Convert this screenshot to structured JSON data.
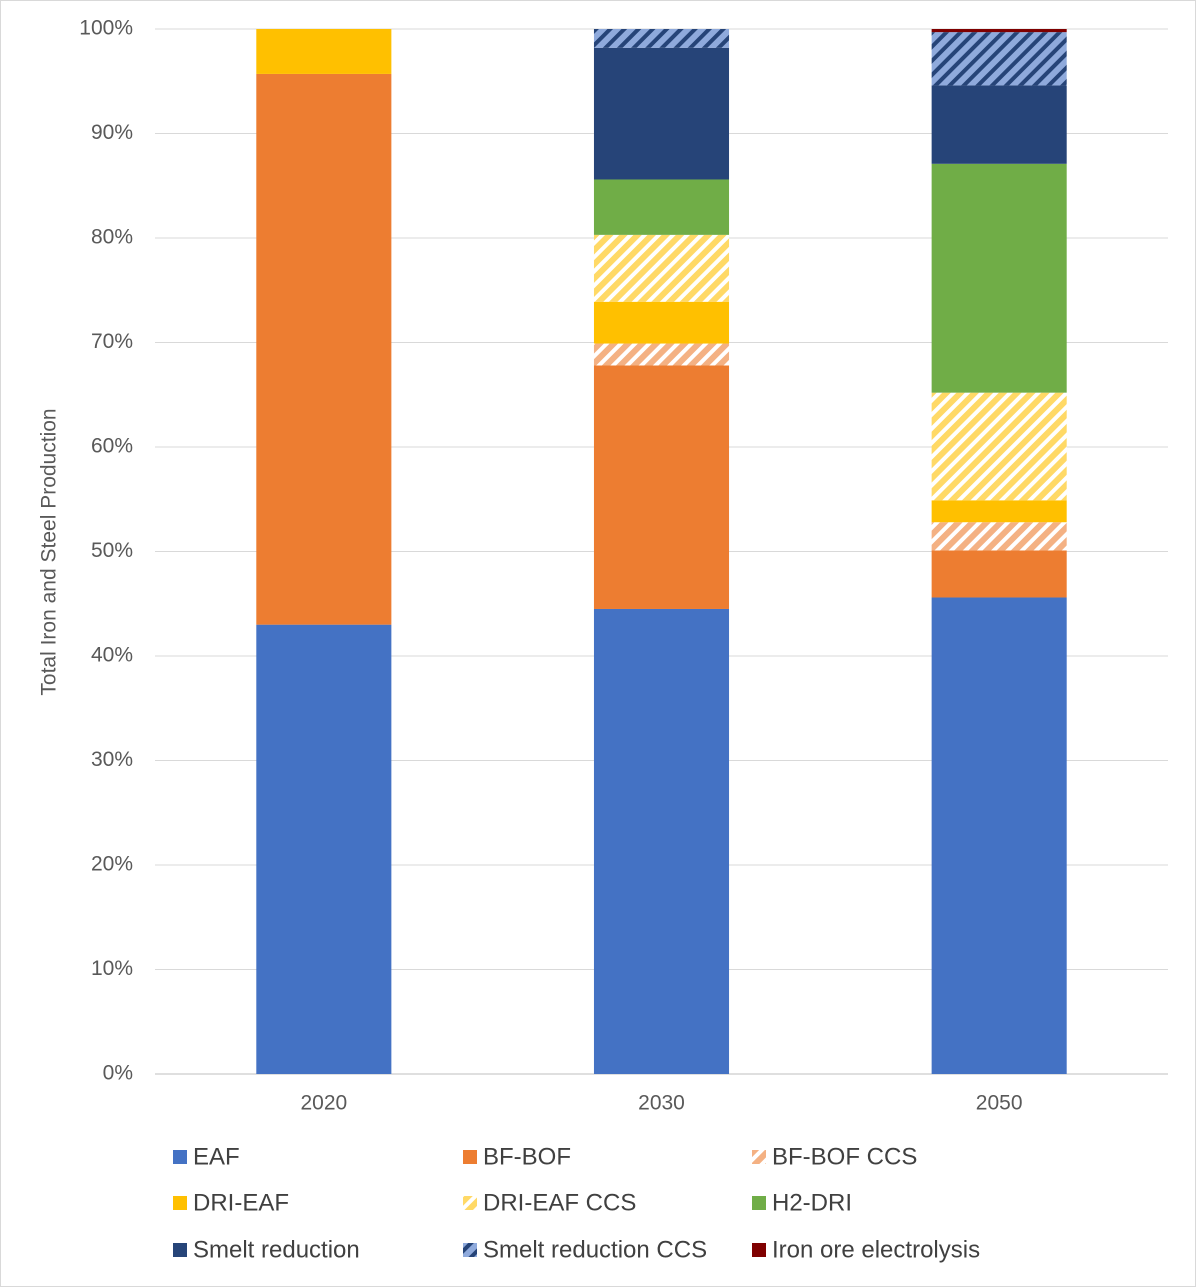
{
  "chart_data": {
    "type": "stacked_bar",
    "y_axis_label": "Total Iron and Steel Production",
    "categories": [
      "2020",
      "2030",
      "2050"
    ],
    "ylim": [
      0,
      100
    ],
    "yticks": [
      {
        "value": 0,
        "label": "0%"
      },
      {
        "value": 10,
        "label": "10%"
      },
      {
        "value": 20,
        "label": "20%"
      },
      {
        "value": 30,
        "label": "30%"
      },
      {
        "value": 40,
        "label": "40%"
      },
      {
        "value": 50,
        "label": "50%"
      },
      {
        "value": 60,
        "label": "60%"
      },
      {
        "value": 70,
        "label": "70%"
      },
      {
        "value": 80,
        "label": "80%"
      },
      {
        "value": 90,
        "label": "90%"
      },
      {
        "value": 100,
        "label": "100%"
      }
    ],
    "grid": true,
    "legend": "bottom",
    "series": [
      {
        "name": "EAF",
        "color": "#4472c4",
        "values": [
          43,
          44.5,
          45.6
        ]
      },
      {
        "name": "BF-BOF",
        "color": "#ed7d31",
        "values": [
          52.7,
          23.3,
          4.5
        ]
      },
      {
        "name": "BF-BOF CCS",
        "color": "#f4b183",
        "hatch": "#ffffff",
        "values": [
          0,
          2.1,
          2.7
        ]
      },
      {
        "name": "DRI-EAF",
        "color": "#ffc000",
        "values": [
          4.3,
          4.0,
          2.1
        ]
      },
      {
        "name": "DRI-EAF CCS",
        "color": "#ffd966",
        "hatch": "#ffffff",
        "values": [
          0,
          6.4,
          10.3
        ]
      },
      {
        "name": "H2-DRI",
        "color": "#70ad47",
        "values": [
          0,
          5.3,
          21.9
        ]
      },
      {
        "name": "Smelt reduction",
        "color": "#264478",
        "values": [
          0,
          12.6,
          7.5
        ]
      },
      {
        "name": "Smelt reduction CCS",
        "color": "#8faadc",
        "hatch": "#264478",
        "values": [
          0,
          1.8,
          5.1
        ]
      },
      {
        "name": "Iron ore electrolysis",
        "color": "#7f0000",
        "values": [
          0,
          0,
          0.3
        ]
      }
    ]
  }
}
